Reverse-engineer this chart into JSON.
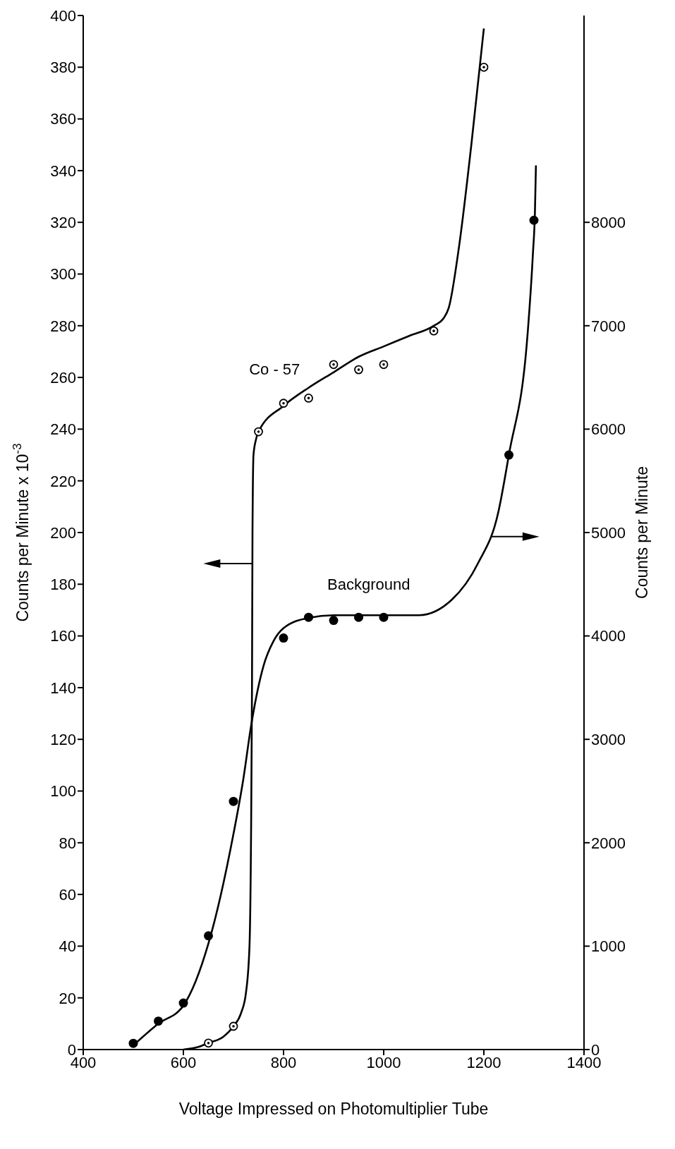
{
  "chart_data": {
    "type": "scatter",
    "xlabel": "Voltage Impressed on Photomultiplier Tube",
    "ylabel": "Counts per Minute x 10$^{-3}$",
    "y2label": "Counts per Minute",
    "xlim": [
      400,
      1400
    ],
    "xticks": [
      400,
      600,
      800,
      1000,
      1200,
      1400
    ],
    "ylim": [
      0,
      400
    ],
    "yticks": [
      0,
      20,
      40,
      60,
      80,
      100,
      120,
      140,
      160,
      180,
      200,
      220,
      240,
      260,
      280,
      300,
      320,
      340,
      360,
      380,
      400
    ],
    "y2lim": [
      0,
      10000
    ],
    "y2ticks": [
      0,
      1000,
      2000,
      3000,
      4000,
      5000,
      6000,
      7000,
      8000
    ],
    "marker": "circle",
    "series": [
      {
        "name": "Co - 57",
        "axis": "y",
        "color": "#000000",
        "x": [
          650,
          700,
          750,
          800,
          850,
          900,
          950,
          1000,
          1100,
          1200
        ],
        "values": [
          2.5,
          9,
          239,
          250,
          252,
          265,
          263,
          265,
          278,
          380
        ]
      },
      {
        "name": "Background",
        "axis": "y2",
        "color": "#000000",
        "x": [
          500,
          550,
          600,
          650,
          700,
          800,
          850,
          900,
          950,
          1000,
          1250,
          1300
        ],
        "values": [
          60,
          275,
          450,
          1100,
          2400,
          3980,
          4180,
          4150,
          4180,
          4180,
          5750,
          8020
        ]
      },
      {
        "type": "line",
        "axis": "y",
        "color": "#000000",
        "marker": "none",
        "line_style": "solid",
        "x": [
          600,
          630,
          650,
          680,
          700,
          715,
          725,
          732,
          735,
          737,
          738,
          740,
          745,
          750,
          800,
          850,
          900,
          950,
          1000,
          1050,
          1100,
          1120,
          1130,
          1150,
          1175,
          1200
        ],
        "values": [
          0,
          1,
          2.5,
          5,
          9,
          14,
          22,
          40,
          80,
          140,
          200,
          230,
          236,
          239,
          249,
          256,
          262,
          268,
          272,
          276,
          280,
          283,
          287,
          310,
          350,
          395
        ]
      },
      {
        "type": "line",
        "axis": "y2",
        "color": "#000000",
        "marker": "none",
        "line_style": "solid",
        "x": [
          500,
          550,
          600,
          650,
          700,
          720,
          735,
          760,
          780,
          800,
          850,
          900,
          1000,
          1070,
          1136,
          1188,
          1229,
          1250,
          1288,
          1298,
          1302,
          1304
        ],
        "values": [
          40,
          250,
          425,
          1025,
          2085,
          2625,
          3125,
          3710,
          3950,
          4075,
          4175,
          4200,
          4200,
          4200,
          4350,
          4700,
          5200,
          5752,
          6960,
          7700,
          8100,
          8550
        ]
      }
    ]
  }
}
